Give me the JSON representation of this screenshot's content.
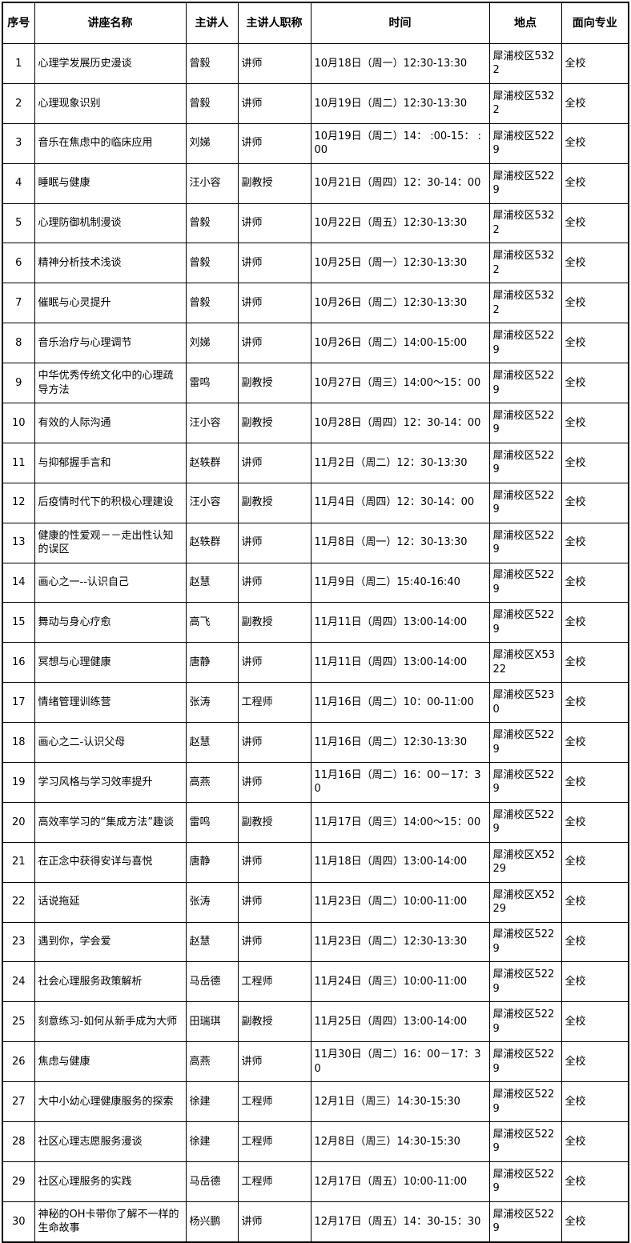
{
  "table": {
    "headers": {
      "no": "序号",
      "name": "讲座名称",
      "speaker": "主讲人",
      "speaker_title": "主讲人职称",
      "time": "时间",
      "location": "地点",
      "major": "面向专业"
    },
    "rows": [
      [
        "1",
        "心理学发展历史漫谈",
        "曾毅",
        "讲师",
        "10月18日（周一）12:30-13:30",
        "犀浦校区5322",
        "全校"
      ],
      [
        "2",
        "心理现象识别",
        "曾毅",
        "讲师",
        "10月19日（周二）12:30-13:30",
        "犀浦校区5322",
        "全校"
      ],
      [
        "3",
        "音乐在焦虑中的临床应用",
        "刘娣",
        "讲师",
        "10月19日（周二）14： :00-15： :00",
        "犀浦校区5229",
        "全校"
      ],
      [
        "4",
        "睡眠与健康",
        "汪小容",
        "副教授",
        "10月21日（周四）12：30-14：00",
        "犀浦校区5229",
        "全校"
      ],
      [
        "5",
        "心理防御机制漫谈",
        "曾毅",
        "讲师",
        "10月22日（周五）12:30-13:30",
        "犀浦校区5322",
        "全校"
      ],
      [
        "6",
        "精神分析技术浅谈",
        "曾毅",
        "讲师",
        "10月25日（周一）12:30-13:30",
        "犀浦校区5322",
        "全校"
      ],
      [
        "7",
        "催眠与心灵提升",
        "曾毅",
        "讲师",
        "10月26日（周二）12:30-13:30",
        "犀浦校区5322",
        "全校"
      ],
      [
        "8",
        "音乐治疗与心理调节",
        "刘娣",
        "讲师",
        "10月26日（周二）14:00-15:00",
        "犀浦校区5229",
        "全校"
      ],
      [
        "9",
        "中华优秀传统文化中的心理疏导方法",
        "雷鸣",
        "副教授",
        "10月27日（周三）14:00～15：00",
        "犀浦校区5229",
        "全校"
      ],
      [
        "10",
        "有效的人际沟通",
        "汪小容",
        "副教授",
        "10月28日（周四）12：30-14：00",
        "犀浦校区5229",
        "全校"
      ],
      [
        "11",
        "与抑郁握手言和",
        "赵轶群",
        "讲师",
        "11月2日（周二）12：30-13:30",
        "犀浦校区5229",
        "全校"
      ],
      [
        "12",
        "后疫情时代下的积极心理建设",
        "汪小容",
        "副教授",
        "11月4日（周四）12：30-14：00",
        "犀浦校区5229",
        "全校"
      ],
      [
        "13",
        "健康的性爱观－－走出性认知的误区",
        "赵轶群",
        "讲师",
        "11月8日（周一）12：30-13:30",
        "犀浦校区5229",
        "全校"
      ],
      [
        "14",
        "画心之一--认识自己",
        "赵慧",
        "讲师",
        "11月9日（周二）15:40-16:40",
        "犀浦校区5229",
        "全校"
      ],
      [
        "15",
        "舞动与身心疗愈",
        "高飞",
        "副教授",
        "11月11日（周四）13:00-14:00",
        "犀浦校区5229",
        "全校"
      ],
      [
        "16",
        "冥想与心理健康",
        "唐静",
        "讲师",
        "11月11日（周四）13:00-14:00",
        "犀浦校区X5322",
        "全校"
      ],
      [
        "17",
        "情绪管理训练营",
        "张涛",
        "工程师",
        "11月16日（周二）10：00-11:00",
        "犀浦校区5230",
        "全校"
      ],
      [
        "18",
        "画心之二-认识父母",
        "赵慧",
        "讲师",
        "11月16日（周二）12:30-13:30",
        "犀浦校区5229",
        "全校"
      ],
      [
        "19",
        "学习风格与学习效率提升",
        "高燕",
        "讲师",
        "11月16日（周二）16：00－17：30",
        "犀浦校区5229",
        "全校"
      ],
      [
        "20",
        "高效率学习的“集成方法”趣谈",
        "雷鸣",
        "副教授",
        "11月17日（周三）14:00～15：00",
        "犀浦校区5229",
        "全校"
      ],
      [
        "21",
        "在正念中获得安详与喜悦",
        "唐静",
        "讲师",
        "11月18日（周四）13:00-14:00",
        "犀浦校区X5229",
        "全校"
      ],
      [
        "22",
        "话说拖延",
        "张涛",
        "讲师",
        "11月23日（周二）10:00-11:00",
        "犀浦校区X5229",
        "全校"
      ],
      [
        "23",
        "遇到你，学会爱",
        "赵慧",
        "讲师",
        "11月23日（周二）12:30-13:30",
        "犀浦校区5229",
        "全校"
      ],
      [
        "24",
        "社会心理服务政策解析",
        "马岳德",
        "工程师",
        "11月24日（周三）10:00-11:00",
        "犀浦校区5229",
        "全校"
      ],
      [
        "25",
        "刻意练习-如何从新手成为大师",
        "田瑞琪",
        "副教授",
        "11月25日（周四）13:00-14:00",
        "犀浦校区5229",
        "全校"
      ],
      [
        "26",
        "焦虑与健康",
        "高燕",
        "讲师",
        "11月30日（周二）16：00－17：30",
        "犀浦校区5229",
        "全校"
      ],
      [
        "27",
        "大中小幼心理健康服务的探索",
        "徐建",
        "工程师",
        "12月1日（周三）14:30-15:30",
        "犀浦校区5229",
        "全校"
      ],
      [
        "28",
        "社区心理志愿服务漫谈",
        "徐建",
        "工程师",
        "12月8日（周三）14:30-15:30",
        "犀浦校区5229",
        "全校"
      ],
      [
        "29",
        "社区心理服务的实践",
        "马岳德",
        "工程师",
        "12月17日（周五）10:00-11:00",
        "犀浦校区5229",
        "全校"
      ],
      [
        "30",
        "神秘的OH卡带你了解不一样的生命故事",
        "杨兴鹏",
        "讲师",
        "12月17日（周五）14：30-15：30",
        "犀浦校区5229",
        "全校"
      ]
    ]
  }
}
